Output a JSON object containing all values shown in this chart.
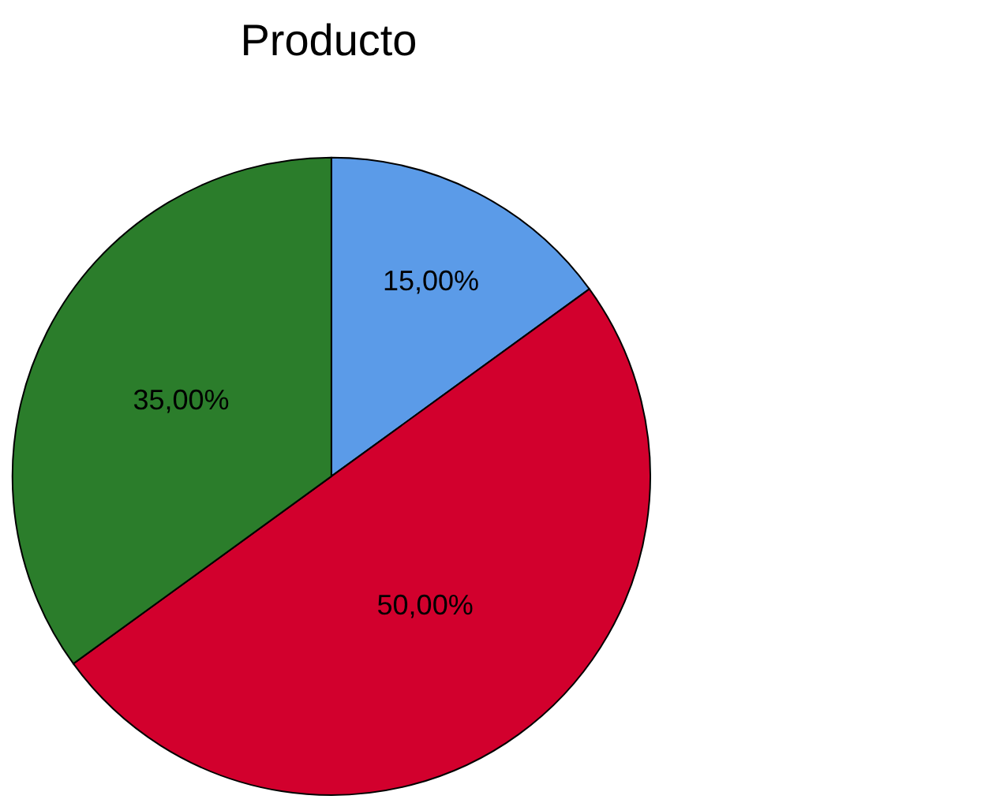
{
  "chart_data": {
    "type": "pie",
    "title": "Producto",
    "categories": [
      null,
      null,
      null
    ],
    "values": [
      15,
      50,
      35
    ],
    "colors": [
      "#5b9be8",
      "#d2002d",
      "#2b7d2b"
    ],
    "value_labels": [
      "15,00%",
      "50,00%",
      "35,00%"
    ],
    "legend": false
  }
}
